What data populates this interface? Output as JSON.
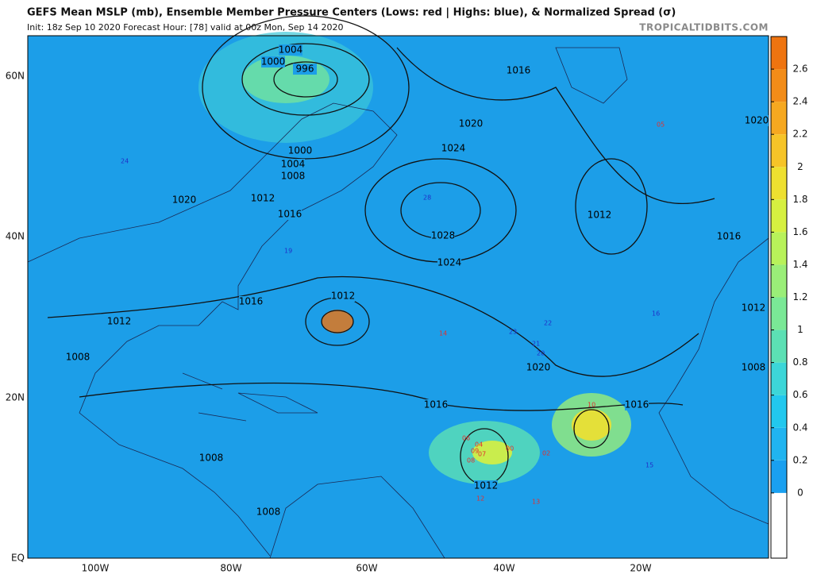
{
  "header": {
    "title": "GEFS Mean MSLP (mb), Ensemble Member Pressure Centers (Lows: red | Highs: blue), & Normalized Spread (σ)",
    "subtitle": "Init: 18z Sep 10 2020   Forecast Hour: [78]   valid at 00z Mon, Sep 14 2020",
    "credit": "TROPICALTIDBITS.COM"
  },
  "map": {
    "lon_labels": [
      "100W",
      "80W",
      "60W",
      "40W",
      "20W"
    ],
    "lat_labels": [
      "60N",
      "40N",
      "20N",
      "EQ"
    ],
    "isobar_labels": [
      "1004",
      "1000",
      "996",
      "1016",
      "1020",
      "1024",
      "1000",
      "1004",
      "1008",
      "1012",
      "1016",
      "1020",
      "1028",
      "1024",
      "1016",
      "1012",
      "1012",
      "1008",
      "1020",
      "1016",
      "1016",
      "1012",
      "1016",
      "1020",
      "1012",
      "1008",
      "1012",
      "1008",
      "1008"
    ],
    "low_member_labels": [
      "12",
      "04",
      "13",
      "02",
      "00",
      "07",
      "09",
      "08",
      "06",
      "14",
      "10",
      "05"
    ],
    "high_member_labels": [
      "24",
      "28",
      "19",
      "23",
      "22",
      "21",
      "20",
      "16",
      "15"
    ]
  },
  "colorbar": {
    "range": [
      -0.4,
      2.8
    ],
    "ticks": [
      0,
      0.2,
      0.4,
      0.6,
      0.8,
      1,
      1.2,
      1.4,
      1.6,
      1.8,
      2,
      2.2,
      2.4,
      2.6
    ],
    "colors": [
      "#ffffff",
      "#1aa0f0",
      "#20b4f0",
      "#22c8ee",
      "#3cd6d8",
      "#5ce0b4",
      "#7ae896",
      "#9aee78",
      "#b8f25a",
      "#d6f040",
      "#eee030",
      "#f6c428",
      "#f6a820",
      "#f28c18",
      "#ee7410"
    ]
  }
}
